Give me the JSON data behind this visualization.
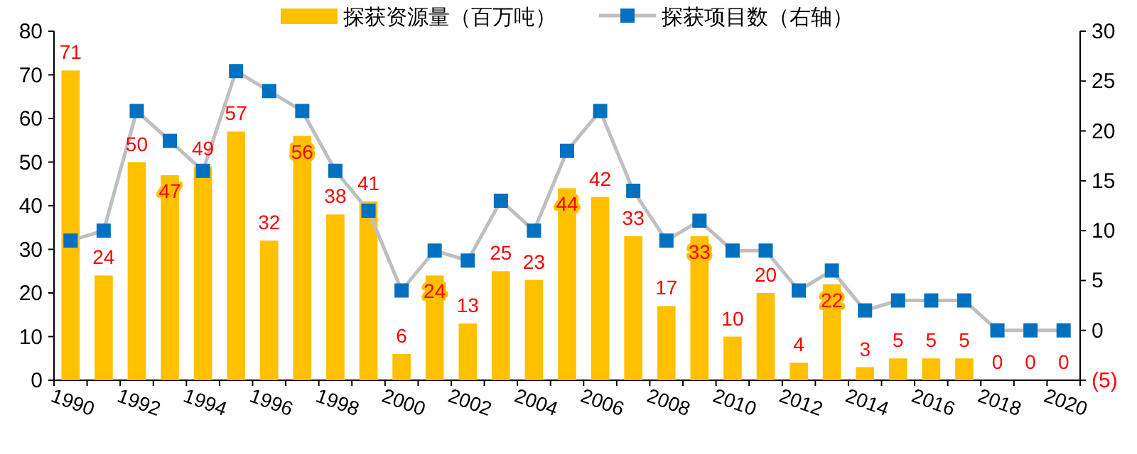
{
  "chart_data": {
    "type": "bar",
    "categories": [
      "1990",
      null,
      "1992",
      null,
      "1994",
      null,
      "1996",
      null,
      "1998",
      null,
      "2000",
      null,
      "2002",
      null,
      "2004",
      null,
      "2006",
      null,
      "2008",
      null,
      "2010",
      null,
      "2012",
      null,
      "2014",
      null,
      "2016",
      null,
      "2018",
      null,
      "2020"
    ],
    "series": [
      {
        "name": "探获资源量（百万吨）",
        "color": "#ffc000",
        "values": [
          71,
          24,
          50,
          47,
          49,
          57,
          32,
          56,
          38,
          41,
          6,
          24,
          13,
          25,
          23,
          44,
          42,
          33,
          17,
          33,
          10,
          20,
          4,
          22,
          3,
          5,
          5,
          5,
          0,
          0,
          0
        ],
        "value_labels": [
          "71",
          "24",
          "50",
          "47",
          "49",
          "57",
          "32",
          "56",
          "38",
          "41",
          "6",
          "24",
          "13",
          "25",
          "23",
          "44",
          "42",
          "33",
          "17",
          "33",
          "10",
          "20",
          "4",
          "22",
          "3",
          "5",
          "5",
          "5",
          "0",
          "0",
          "0"
        ]
      },
      {
        "name": "探获项目数（右轴）",
        "type": "line",
        "axis": "y2",
        "marker": "square",
        "color": "#0070c0",
        "values": [
          9,
          10,
          22,
          19,
          16,
          26,
          24,
          22,
          16,
          12,
          4,
          8,
          7,
          13,
          10,
          18,
          22,
          14,
          9,
          11,
          8,
          8,
          4,
          6,
          2,
          3,
          3,
          3,
          0,
          0,
          0
        ]
      }
    ],
    "ylim": [
      0,
      80
    ],
    "yticks": [
      0,
      10,
      20,
      30,
      40,
      50,
      60,
      70,
      80
    ],
    "y2lim": [
      -5,
      30
    ],
    "y2ticks": [
      {
        "value": -5,
        "label": "(5)"
      },
      0,
      5,
      10,
      15,
      20,
      25,
      30
    ],
    "legend": "top"
  }
}
